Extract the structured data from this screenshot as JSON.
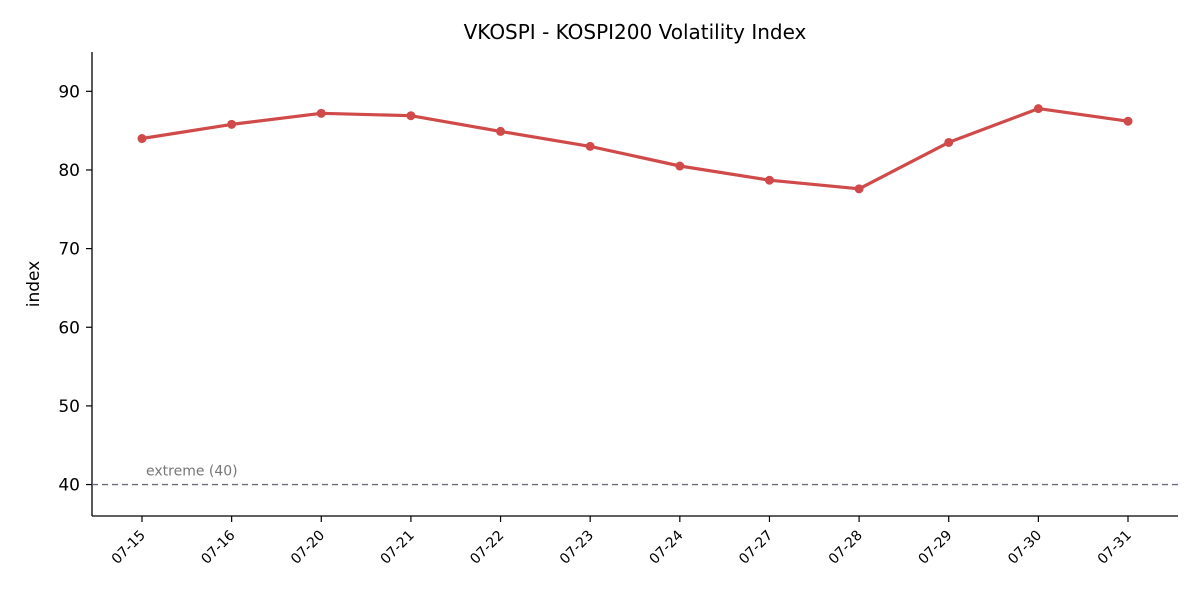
{
  "chart_data": {
    "type": "line",
    "title": "VKOSPI - KOSPI200 Volatility Index",
    "xlabel": "",
    "ylabel": "index",
    "ylim": [
      36,
      95
    ],
    "yticks": [
      40,
      50,
      60,
      70,
      80,
      90
    ],
    "x": [
      "07-15",
      "07-16",
      "07-20",
      "07-21",
      "07-22",
      "07-23",
      "07-24",
      "07-27",
      "07-28",
      "07-29",
      "07-30",
      "07-31"
    ],
    "series": [
      {
        "values": [
          84.0,
          85.8,
          87.2,
          86.9,
          84.9,
          83.0,
          80.5,
          78.7,
          77.6,
          83.5,
          87.8,
          86.2
        ],
        "color": "#d04a4a"
      }
    ],
    "reference_line": {
      "y": 40,
      "label": "extreme (40)",
      "color": "#6b6b80",
      "style": "dashed"
    },
    "grid": false,
    "legend": "none"
  }
}
